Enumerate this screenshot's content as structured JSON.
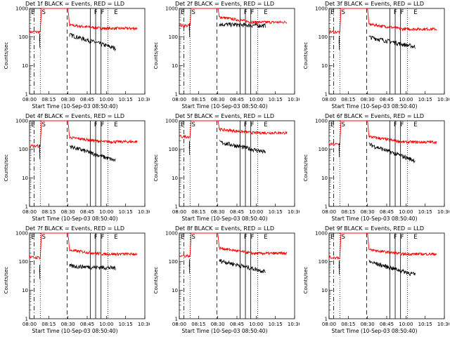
{
  "chart_data": {
    "type": "line",
    "xlabel": "Start Time (10-Sep-03 08:50:40)",
    "ylabel": "Counts/sec",
    "x_ticks": [
      "08:00",
      "08:15",
      "08:30",
      "08:45",
      "10:00",
      "10:15",
      "10:30"
    ],
    "y_ticks": [
      "1",
      "10",
      "100",
      "1000"
    ],
    "ylim": [
      1,
      1000
    ],
    "xlim": [
      0,
      150
    ],
    "x_units": "minutes from 08:00",
    "series_colors": {
      "events": "#000000",
      "lld": "#ff0000"
    },
    "markers": [
      "E",
      "S",
      "F",
      "F",
      "E"
    ],
    "panels": [
      {
        "title": "Det 1f BLACK = Events, RED = LLD",
        "lld": {
          "pre": 150,
          "post_start": 260,
          "post_end": 200
        },
        "events": {
          "start": 120,
          "end": 40
        }
      },
      {
        "title": "Det 2f BLACK = Events, RED = LLD",
        "lld": {
          "pre": 250,
          "post_start": 500,
          "post_end": 330
        },
        "events": {
          "start": 280,
          "end": 250
        }
      },
      {
        "title": "Det 3f BLACK = Events, RED = LLD",
        "lld": {
          "pre": 150,
          "post_start": 280,
          "post_end": 190
        },
        "events": {
          "start": 100,
          "end": 45
        }
      },
      {
        "title": "Det 4f BLACK = Events, RED = LLD",
        "lld": {
          "pre": 130,
          "post_start": 260,
          "post_end": 185
        },
        "events": {
          "start": 130,
          "end": 40
        }
      },
      {
        "title": "Det 5f BLACK = Events, RED = LLD",
        "lld": {
          "pre": 280,
          "post_start": 500,
          "post_end": 380
        },
        "events": {
          "start": 180,
          "end": 80
        }
      },
      {
        "title": "Det 6f BLACK = Events, RED = LLD",
        "lld": {
          "pre": 150,
          "post_start": 280,
          "post_end": 180
        },
        "events": {
          "start": 150,
          "end": 40
        }
      },
      {
        "title": "Det 7f BLACK = Events, RED = LLD",
        "lld": {
          "pre": 140,
          "post_start": 250,
          "post_end": 185
        },
        "events": {
          "start": 70,
          "end": 60
        }
      },
      {
        "title": "Det 8f BLACK = Events, RED = LLD",
        "lld": {
          "pre": 160,
          "post_start": 300,
          "post_end": 195
        },
        "events": {
          "start": 110,
          "end": 45
        }
      },
      {
        "title": "Det 9f BLACK = Events, RED = LLD",
        "lld": {
          "pre": 140,
          "post_start": 260,
          "post_end": 185
        },
        "events": {
          "start": 100,
          "end": 35
        }
      }
    ]
  }
}
